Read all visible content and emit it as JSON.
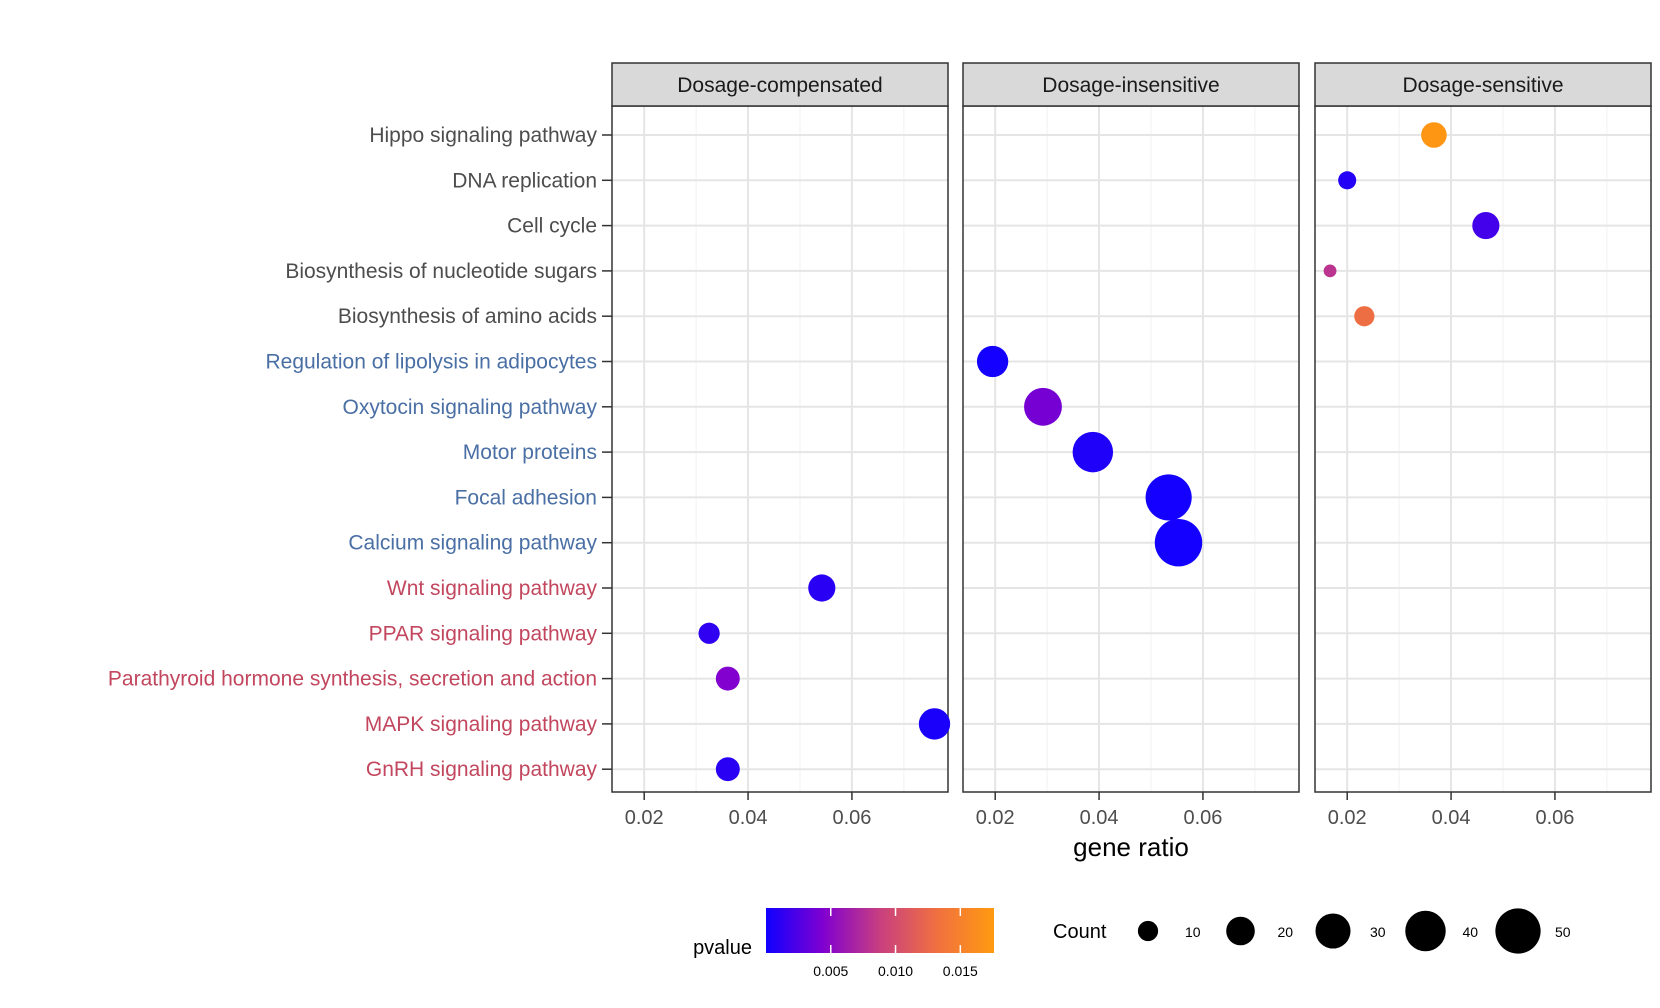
{
  "chart_data": {
    "type": "scatter",
    "xlabel": "gene ratio",
    "facets": [
      "Dosage-compensated",
      "Dosage-insensitive",
      "Dosage-sensitive"
    ],
    "pathways": [
      {
        "name": "Hippo signaling pathway",
        "group_color": "#4d4d4d"
      },
      {
        "name": "DNA replication",
        "group_color": "#4d4d4d"
      },
      {
        "name": "Cell cycle",
        "group_color": "#4d4d4d"
      },
      {
        "name": "Biosynthesis of nucleotide sugars",
        "group_color": "#4d4d4d"
      },
      {
        "name": "Biosynthesis of amino acids",
        "group_color": "#4d4d4d"
      },
      {
        "name": "Regulation of lipolysis in adipocytes",
        "group_color": "#4a6fa5"
      },
      {
        "name": "Oxytocin signaling pathway",
        "group_color": "#4a6fa5"
      },
      {
        "name": "Motor proteins",
        "group_color": "#4a6fa5"
      },
      {
        "name": "Focal adhesion",
        "group_color": "#4a6fa5"
      },
      {
        "name": "Calcium signaling pathway",
        "group_color": "#4a6fa5"
      },
      {
        "name": "Wnt signaling pathway",
        "group_color": "#c2475e"
      },
      {
        "name": "PPAR signaling pathway",
        "group_color": "#c2475e"
      },
      {
        "name": "Parathyroid hormone synthesis, secretion and action",
        "group_color": "#c2475e"
      },
      {
        "name": "MAPK signaling pathway",
        "group_color": "#c2475e"
      },
      {
        "name": "GnRH signaling pathway",
        "group_color": "#c2475e"
      }
    ],
    "x_ticks": [
      0.02,
      0.04,
      0.06
    ],
    "x_minor_ticks": [
      0.03,
      0.05,
      0.07
    ],
    "xlim": [
      0.0138,
      0.0785
    ],
    "points": [
      {
        "facet": "Dosage-sensitive",
        "pathway": "Hippo signaling pathway",
        "x": 0.0367,
        "count": 16,
        "pvalue": 0.0172
      },
      {
        "facet": "Dosage-sensitive",
        "pathway": "DNA replication",
        "x": 0.02,
        "count": 8,
        "pvalue": 0.0008
      },
      {
        "facet": "Dosage-sensitive",
        "pathway": "Cell cycle",
        "x": 0.0467,
        "count": 18,
        "pvalue": 0.002
      },
      {
        "facet": "Dosage-sensitive",
        "pathway": "Biosynthesis of nucleotide sugars",
        "x": 0.0167,
        "count": 4,
        "pvalue": 0.008
      },
      {
        "facet": "Dosage-sensitive",
        "pathway": "Biosynthesis of amino acids",
        "x": 0.0233,
        "count": 10,
        "pvalue": 0.013
      },
      {
        "facet": "Dosage-insensitive",
        "pathway": "Regulation of lipolysis in adipocytes",
        "x": 0.0195,
        "count": 24,
        "pvalue": 0.0001
      },
      {
        "facet": "Dosage-insensitive",
        "pathway": "Oxytocin signaling pathway",
        "x": 0.0292,
        "count": 35,
        "pvalue": 0.004
      },
      {
        "facet": "Dosage-insensitive",
        "pathway": "Motor proteins",
        "x": 0.0388,
        "count": 40,
        "pvalue": 0.0006
      },
      {
        "facet": "Dosage-insensitive",
        "pathway": "Focal adhesion",
        "x": 0.0534,
        "count": 52,
        "pvalue": 0.0001
      },
      {
        "facet": "Dosage-insensitive",
        "pathway": "Calcium signaling pathway",
        "x": 0.0553,
        "count": 55,
        "pvalue": 0.0001
      },
      {
        "facet": "Dosage-compensated",
        "pathway": "Wnt signaling pathway",
        "x": 0.0542,
        "count": 18,
        "pvalue": 0.001
      },
      {
        "facet": "Dosage-compensated",
        "pathway": "PPAR signaling pathway",
        "x": 0.0325,
        "count": 11,
        "pvalue": 0.0012
      },
      {
        "facet": "Dosage-compensated",
        "pathway": "Parathyroid hormone synthesis, secretion and action",
        "x": 0.0361,
        "count": 14,
        "pvalue": 0.0045
      },
      {
        "facet": "Dosage-compensated",
        "pathway": "MAPK signaling pathway",
        "x": 0.0759,
        "count": 24,
        "pvalue": 0.0004
      },
      {
        "facet": "Dosage-compensated",
        "pathway": "GnRH signaling pathway",
        "x": 0.0361,
        "count": 14,
        "pvalue": 0.001
      }
    ],
    "legend_pvalue": {
      "title": "pvalue",
      "ticks": [
        0.005,
        0.01,
        0.015
      ],
      "tick_labels": [
        "0.005",
        "0.010",
        "0.015"
      ],
      "range": [
        0.0,
        0.0176
      ],
      "colors": [
        "#1000ff",
        "#8000d0",
        "#c83f80",
        "#f07040",
        "#ff9a10"
      ]
    },
    "legend_count": {
      "title": "Count",
      "values": [
        10,
        20,
        30,
        40,
        50
      ],
      "labels": [
        "10",
        "20",
        "30",
        "40",
        "50"
      ]
    },
    "grid": true
  }
}
